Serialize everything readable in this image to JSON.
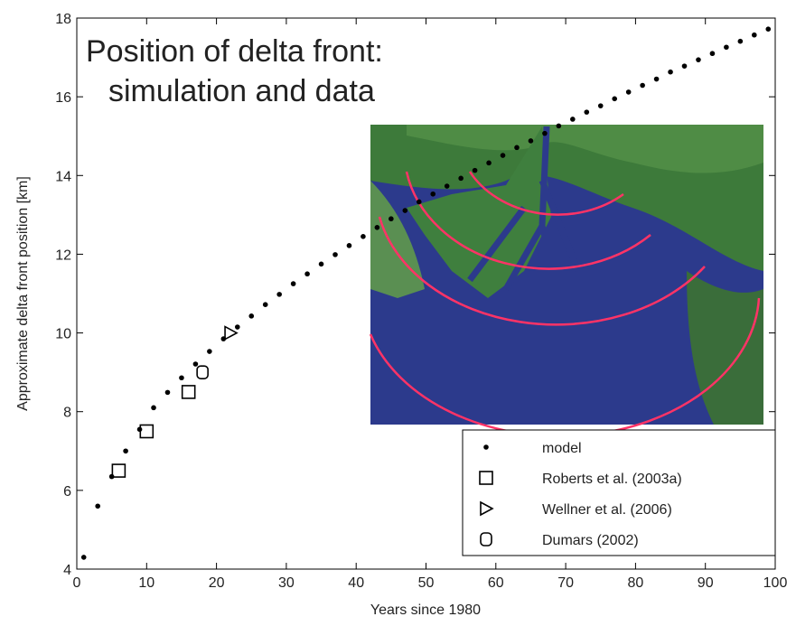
{
  "chart_data": {
    "type": "scatter",
    "title": "Position of delta front:",
    "subtitle": "simulation and data",
    "x_label": "Years since 1980",
    "y_label": "Approximate delta front position [km]",
    "xlim": [
      0,
      100
    ],
    "xticks": [
      0,
      10,
      20,
      30,
      40,
      50,
      60,
      70,
      80,
      90,
      100
    ],
    "ylim": [
      4,
      18
    ],
    "yticks": [
      4,
      6,
      8,
      10,
      12,
      14,
      16,
      18
    ],
    "grid": false,
    "legend": "lower right",
    "series": [
      {
        "name": "model",
        "color": "#000000",
        "marker": "dot",
        "x": [
          1,
          3,
          5,
          7,
          9,
          11,
          13,
          15,
          17,
          19,
          21,
          23,
          25,
          27,
          29,
          31,
          33,
          35,
          37,
          39,
          41,
          43,
          45,
          47,
          49,
          51,
          53,
          55,
          57,
          59,
          61,
          63,
          65,
          67,
          69,
          71,
          73,
          75,
          77,
          79,
          81,
          83,
          85,
          87,
          89,
          91,
          93,
          95,
          97,
          99
        ],
        "values": [
          4.3,
          5.6,
          6.35,
          7.0,
          7.55,
          8.1,
          8.49,
          8.86,
          9.21,
          9.53,
          9.85,
          10.15,
          10.43,
          10.72,
          10.98,
          11.25,
          11.5,
          11.75,
          11.99,
          12.22,
          12.45,
          12.68,
          12.9,
          13.11,
          13.33,
          13.53,
          13.73,
          13.93,
          14.13,
          14.32,
          14.51,
          14.71,
          14.88,
          15.07,
          15.26,
          15.43,
          15.61,
          15.77,
          15.95,
          16.12,
          16.29,
          16.45,
          16.63,
          16.78,
          16.94,
          17.1,
          17.26,
          17.41,
          17.57,
          17.72
        ]
      },
      {
        "name": "Roberts et al. (2003a)",
        "color": "#000000",
        "marker": "square",
        "x": [
          6,
          10,
          16
        ],
        "values": [
          6.5,
          7.5,
          8.5
        ]
      },
      {
        "name": "Wellner et al. (2006)",
        "color": "#000000",
        "marker": "triangle",
        "x": [
          22
        ],
        "values": [
          10
        ]
      },
      {
        "name": "Dumars (2002)",
        "color": "#000000",
        "marker": "circle",
        "x": [
          18
        ],
        "values": [
          9
        ]
      }
    ]
  }
}
